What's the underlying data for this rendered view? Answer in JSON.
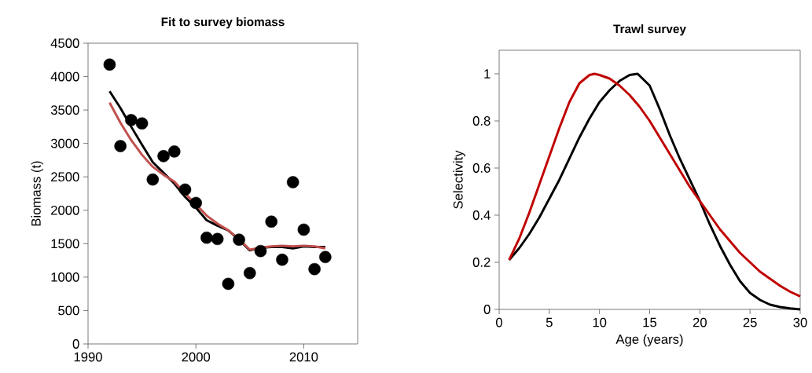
{
  "chart_data": [
    {
      "type": "line",
      "title": "Fit to survey biomass",
      "ylabel": "Biomass (t)",
      "x": [
        1992,
        1993,
        1994,
        1995,
        1996,
        1997,
        1998,
        1999,
        2000,
        2001,
        2002,
        2003,
        2004,
        2005,
        2006,
        2007,
        2008,
        2009,
        2010,
        2011,
        2012
      ],
      "series": [
        {
          "type": "scatter",
          "marker": "circle",
          "color": "#000000",
          "values": [
            4180,
            2960,
            3350,
            3300,
            2460,
            2810,
            2880,
            2310,
            2110,
            1590,
            1570,
            900,
            1560,
            1060,
            1390,
            1830,
            1260,
            2420,
            1710,
            1120,
            1300
          ]
        },
        {
          "type": "line",
          "color": "#000000",
          "values": [
            3780,
            3530,
            3250,
            2980,
            2720,
            2560,
            2400,
            2200,
            2040,
            1850,
            1770,
            1700,
            1560,
            1400,
            1440,
            1450,
            1450,
            1430,
            1460,
            1450,
            1450
          ]
        },
        {
          "type": "line",
          "color": "#c0504d",
          "values": [
            3610,
            3310,
            3050,
            2830,
            2650,
            2530,
            2430,
            2250,
            2090,
            1920,
            1800,
            1700,
            1570,
            1410,
            1440,
            1460,
            1470,
            1460,
            1470,
            1460,
            1430
          ]
        }
      ],
      "xlim": [
        1990,
        2015
      ],
      "xticks": [
        1990,
        2000,
        2010
      ],
      "ylim": [
        0,
        4500
      ],
      "yticks": [
        0,
        500,
        1000,
        1500,
        2000,
        2500,
        3000,
        3500,
        4000,
        4500
      ]
    },
    {
      "type": "line",
      "title": "Trawl survey",
      "xlabel": "Age (years)",
      "ylabel": "Selectivity",
      "series": [
        {
          "color": "#000000",
          "x": [
            1,
            2,
            3,
            4,
            5,
            6,
            7,
            8,
            9,
            10,
            11,
            12,
            13,
            13.8,
            15,
            16,
            17,
            18,
            19,
            20,
            21,
            22,
            23,
            24,
            25,
            26,
            27,
            28,
            29,
            30
          ],
          "values": [
            0.21,
            0.26,
            0.32,
            0.39,
            0.47,
            0.55,
            0.64,
            0.73,
            0.81,
            0.88,
            0.93,
            0.97,
            0.995,
            1.0,
            0.95,
            0.85,
            0.74,
            0.64,
            0.55,
            0.46,
            0.36,
            0.27,
            0.19,
            0.12,
            0.07,
            0.04,
            0.02,
            0.01,
            0.004,
            0.0
          ]
        },
        {
          "color": "#c00000",
          "x": [
            1,
            2,
            3,
            4,
            5,
            6,
            7,
            8,
            9,
            9.5,
            10,
            11,
            12,
            13,
            14,
            15,
            16,
            17,
            18,
            19,
            20,
            21,
            22,
            23,
            24,
            25,
            26,
            27,
            28,
            29,
            30
          ],
          "values": [
            0.21,
            0.3,
            0.41,
            0.53,
            0.65,
            0.77,
            0.88,
            0.96,
            0.995,
            1.0,
            0.995,
            0.98,
            0.95,
            0.91,
            0.86,
            0.8,
            0.73,
            0.66,
            0.59,
            0.52,
            0.46,
            0.4,
            0.34,
            0.29,
            0.24,
            0.2,
            0.16,
            0.13,
            0.1,
            0.075,
            0.055
          ]
        }
      ],
      "xlim": [
        0,
        30
      ],
      "xticks": [
        0,
        5,
        10,
        15,
        20,
        25,
        30
      ],
      "ylim": [
        0,
        1.1
      ],
      "yticks": [
        0,
        0.2,
        0.4,
        0.6,
        0.8,
        1
      ]
    }
  ]
}
